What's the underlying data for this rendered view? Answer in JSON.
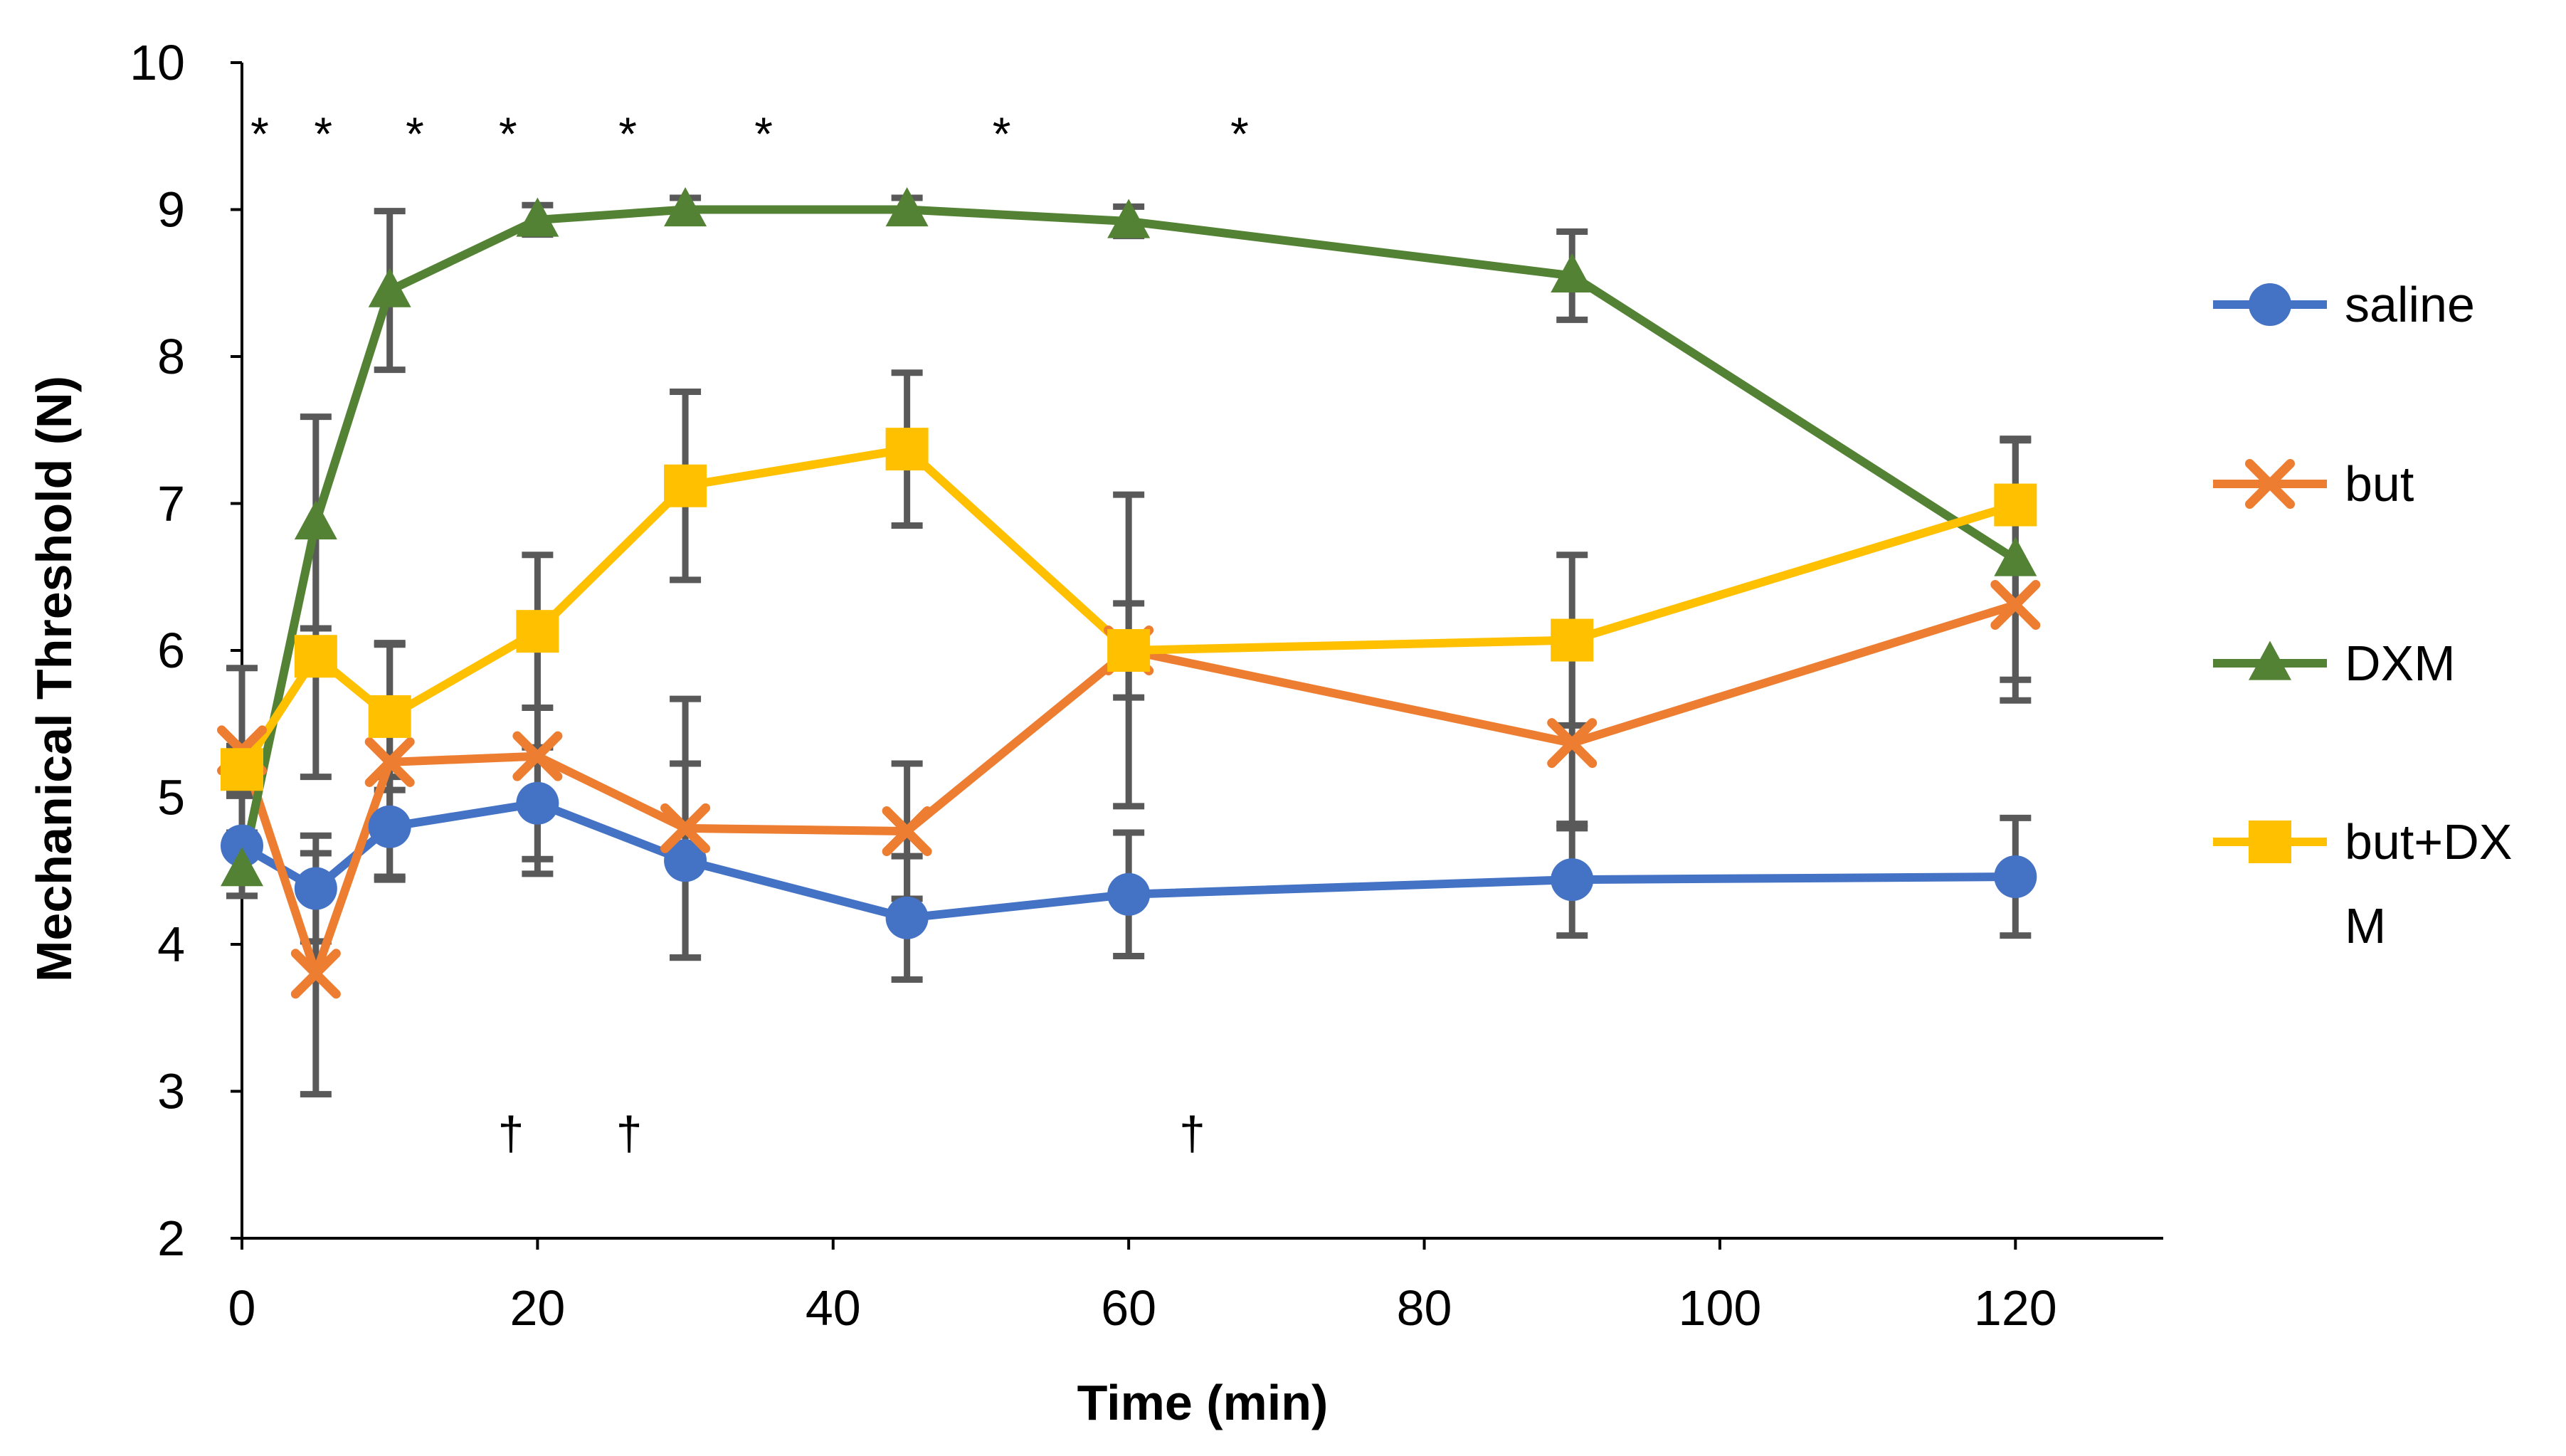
{
  "chart_data": {
    "type": "line",
    "title": "",
    "xlabel": "Time (min)",
    "ylabel": "Mechanical Threshold (N)",
    "xlim": [
      0,
      130
    ],
    "ylim": [
      2,
      10
    ],
    "xticks": [
      0,
      20,
      40,
      60,
      80,
      100,
      120
    ],
    "yticks": [
      2,
      3,
      4,
      5,
      6,
      7,
      8,
      9,
      10
    ],
    "x": [
      0,
      5,
      10,
      20,
      30,
      45,
      60,
      90,
      120
    ],
    "legend_position": "right",
    "series": [
      {
        "name": "saline",
        "color": "#4472C4",
        "marker": "circle",
        "values": [
          4.67,
          4.38,
          4.8,
          4.96,
          4.57,
          4.18,
          4.34,
          4.44,
          4.46
        ],
        "errors": [
          0.34,
          0.36,
          0.34,
          0.38,
          0.66,
          0.42,
          0.42,
          0.38,
          0.4
        ]
      },
      {
        "name": "but",
        "color": "#ED7D31",
        "marker": "x",
        "values": [
          5.32,
          3.8,
          5.24,
          5.28,
          4.79,
          4.77,
          6.0,
          5.37,
          6.31
        ],
        "errors": [
          0.56,
          0.82,
          0.8,
          0.8,
          0.88,
          0.46,
          1.06,
          0.58,
          0.65
        ]
      },
      {
        "name": "DXM",
        "color": "#548235",
        "marker": "triangle",
        "values": [
          4.51,
          6.87,
          8.45,
          8.93,
          9.0,
          9.0,
          8.92,
          8.55,
          6.62
        ],
        "errors": [
          0.18,
          0.72,
          0.54,
          0.1,
          0.08,
          0.08,
          0.1,
          0.3,
          0.82
        ]
      },
      {
        "name": "but+DXM",
        "color": "#FFC000",
        "marker": "square",
        "values": [
          5.19,
          5.96,
          5.55,
          6.13,
          7.12,
          7.37,
          6.0,
          6.07,
          6.99
        ],
        "errors": [
          0.16,
          0.82,
          0.5,
          0.52,
          0.64,
          0.52,
          0.32,
          0.58,
          0.44
        ]
      }
    ],
    "legend_labels": [
      [
        "saline"
      ],
      [
        "but"
      ],
      [
        "DXM"
      ],
      [
        "but+DX",
        "M"
      ]
    ],
    "annotations": [
      {
        "text": "*",
        "x": 1.2,
        "y": 9.52
      },
      {
        "text": "*",
        "x": 5.5,
        "y": 9.52
      },
      {
        "text": "*",
        "x": 11.7,
        "y": 9.52
      },
      {
        "text": "*",
        "x": 18,
        "y": 9.52
      },
      {
        "text": "*",
        "x": 26.1,
        "y": 9.52
      },
      {
        "text": "*",
        "x": 35.3,
        "y": 9.52
      },
      {
        "text": "*",
        "x": 51.4,
        "y": 9.52
      },
      {
        "text": "*",
        "x": 67.5,
        "y": 9.52
      },
      {
        "text": "†",
        "x": 18.2,
        "y": 2.72
      },
      {
        "text": "†",
        "x": 26.2,
        "y": 2.72
      },
      {
        "text": "†",
        "x": 64.3,
        "y": 2.72
      }
    ]
  }
}
